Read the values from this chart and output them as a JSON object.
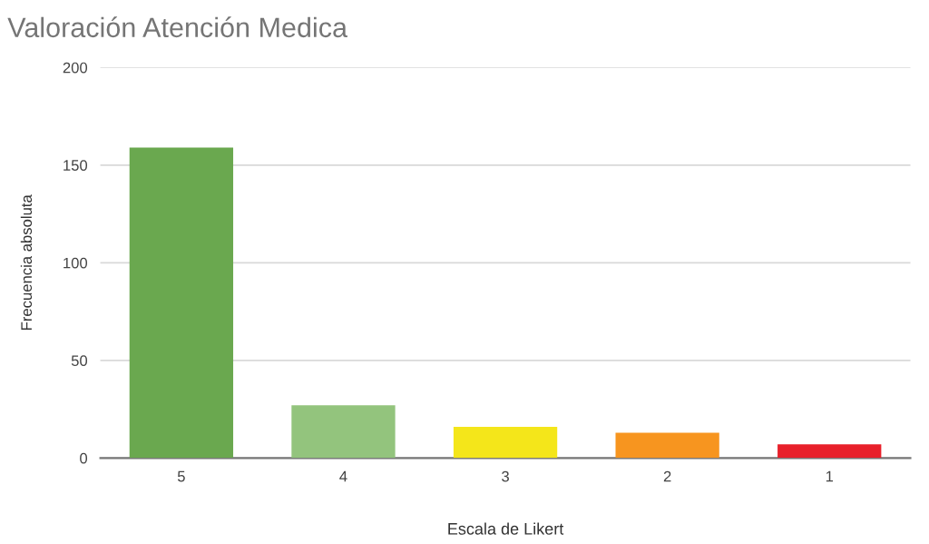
{
  "chart_data": {
    "type": "bar",
    "title": "Valoración Atención Medica",
    "xlabel": "Escala de Likert",
    "ylabel": "Frecuencia absoluta",
    "categories": [
      "5",
      "4",
      "3",
      "2",
      "1"
    ],
    "values": [
      159,
      27,
      16,
      13,
      7
    ],
    "colors": [
      "#6aa84f",
      "#93c47d",
      "#f4e61a",
      "#f7951f",
      "#e8202a"
    ],
    "ylim": [
      0,
      200
    ],
    "yticks": [
      0,
      50,
      100,
      150,
      200
    ],
    "grid": "y"
  }
}
